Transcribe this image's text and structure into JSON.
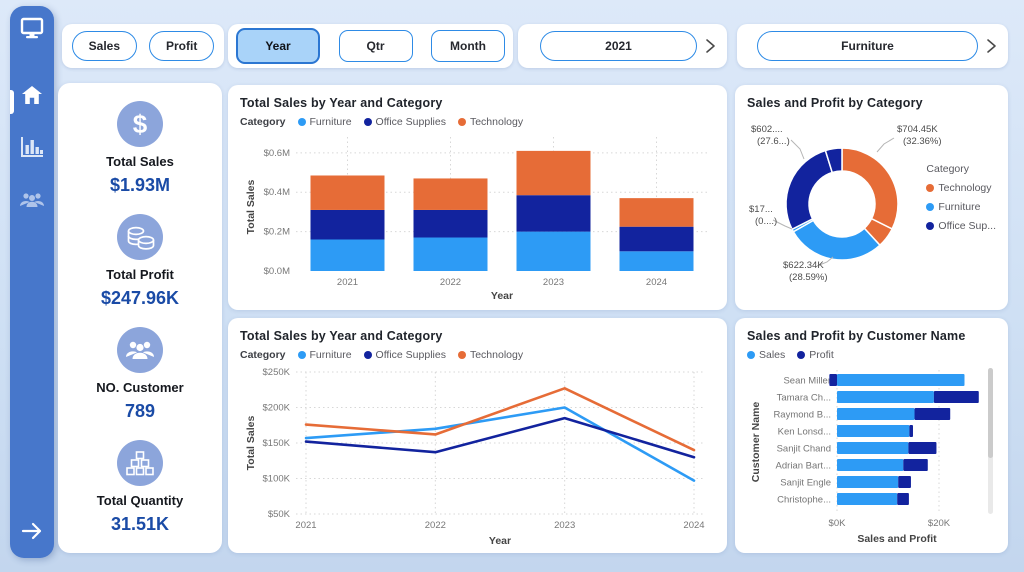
{
  "sidebar": {
    "items": [
      {
        "id": "home",
        "icon": "home-icon",
        "active": true
      },
      {
        "id": "charts",
        "icon": "bar-chart-icon",
        "active": false
      },
      {
        "id": "customers",
        "icon": "people-icon",
        "active": false
      }
    ],
    "logo_icon": "monitor-icon",
    "expand_icon": "arrow-right-icon"
  },
  "toolbar": {
    "measure_buttons": [
      {
        "label": "Sales",
        "active": false
      },
      {
        "label": "Profit",
        "active": false
      }
    ],
    "period_buttons": [
      {
        "label": "Year",
        "active": true
      },
      {
        "label": "Qtr",
        "active": false
      },
      {
        "label": "Month",
        "active": false
      }
    ],
    "year_filter": {
      "value": "2021"
    },
    "category_filter": {
      "value": "Furniture"
    }
  },
  "kpis": [
    {
      "icon": "dollar-icon",
      "label": "Total Sales",
      "value": "$1.93M"
    },
    {
      "icon": "coins-icon",
      "label": "Total Profit",
      "value": "$247.96K"
    },
    {
      "icon": "customers-icon",
      "label": "NO. Customer",
      "value": "789"
    },
    {
      "icon": "boxes-icon",
      "label": "Total Quantity",
      "value": "31.51K"
    }
  ],
  "colors": {
    "furniture_sales_blue": "#2D9BF5",
    "office_supplies_navy": "#12239E",
    "technology_orange": "#E66C37",
    "sidebar_blue": "#4777CB",
    "active_button_fill": "#A9D3F9",
    "button_border_blue": "#2E8BE6",
    "kpi_value_blue": "#1A4BA6",
    "kpi_icon_circle": "#8CA5DB"
  },
  "chart_data": [
    {
      "type": "bar",
      "stacked": true,
      "title": "Total Sales by Year and Category",
      "legend_title": "Category",
      "legend_position": "top",
      "grid": true,
      "categories": [
        "2021",
        "2022",
        "2023",
        "2024"
      ],
      "series": [
        {
          "name": "Furniture",
          "color": "#2D9BF5",
          "values_M": [
            0.16,
            0.17,
            0.2,
            0.1
          ]
        },
        {
          "name": "Office Supplies",
          "color": "#12239E",
          "values_M": [
            0.15,
            0.14,
            0.185,
            0.125
          ]
        },
        {
          "name": "Technology",
          "color": "#E66C37",
          "values_M": [
            0.175,
            0.16,
            0.225,
            0.145
          ]
        }
      ],
      "xlabel": "Year",
      "ylabel": "Total Sales",
      "yticks": [
        "$0.0M",
        "$0.2M",
        "$0.4M",
        "$0.6M"
      ],
      "ytick_values": [
        0,
        0.2,
        0.4,
        0.6
      ],
      "ylim": [
        0,
        0.65
      ]
    },
    {
      "type": "pie",
      "title": "Sales and Profit by Category",
      "legend_title": "Category",
      "legend_position": "right",
      "legend": [
        {
          "label": "Technology",
          "color": "#E66C37"
        },
        {
          "label": "Furniture",
          "color": "#2D9BF5"
        },
        {
          "label": "Office Sup...",
          "color": "#12239E"
        }
      ],
      "slices": [
        {
          "name": "Technology (Sales)",
          "pct": 32.36,
          "color": "#E66C37"
        },
        {
          "name": "Technology (Profit)",
          "pct": 5.8,
          "color": "#E66C37"
        },
        {
          "name": "Furniture (Sales)",
          "pct": 28.59,
          "color": "#2D9BF5"
        },
        {
          "name": "Furniture (Profit)",
          "pct": 0.8,
          "color": "#2D9BF5"
        },
        {
          "name": "Office Supplies (Sales)",
          "pct": 27.66,
          "color": "#12239E"
        },
        {
          "name": "Office Supplies (Profit)",
          "pct": 4.79,
          "color": "#12239E"
        }
      ],
      "callouts": [
        {
          "line1": "$704.45K",
          "line2": "(32.36%)"
        },
        {
          "line1": "$602....",
          "line2": "(27.6...)"
        },
        {
          "line1": "$17...",
          "line2": "(0....)"
        },
        {
          "line1": "$622.34K",
          "line2": "(28.59%)"
        }
      ]
    },
    {
      "type": "line",
      "title": "Total Sales by Year and Category",
      "legend_title": "Category",
      "legend_position": "top",
      "grid": true,
      "x": [
        "2021",
        "2022",
        "2023",
        "2024"
      ],
      "series": [
        {
          "name": "Furniture",
          "color": "#2D9BF5",
          "values_K": [
            157,
            170,
            200,
            97
          ]
        },
        {
          "name": "Office Supplies",
          "color": "#12239E",
          "values_K": [
            152,
            137,
            185,
            130
          ]
        },
        {
          "name": "Technology",
          "color": "#E66C37",
          "values_K": [
            176,
            162,
            227,
            140
          ]
        }
      ],
      "xlabel": "Year",
      "ylabel": "Total Sales",
      "yticks": [
        "$50K",
        "$100K",
        "$150K",
        "$200K",
        "$250K"
      ],
      "ytick_values": [
        50,
        100,
        150,
        200,
        250
      ],
      "ylim": [
        50,
        250
      ]
    },
    {
      "type": "bar",
      "horizontal": true,
      "stacked": true,
      "title": "Sales and Profit by Customer Name",
      "legend_position": "top",
      "grid": true,
      "has_scrollbar": true,
      "categories": [
        "Sean Miller",
        "Tamara Ch...",
        "Raymond B...",
        "Ken Lonsd...",
        "Sanjit Chand",
        "Adrian Bart...",
        "Sanjit Engle",
        "Christophe..."
      ],
      "series": [
        {
          "name": "Sales",
          "color": "#2D9BF5",
          "values_K": [
            25.0,
            19.0,
            15.2,
            14.2,
            14.0,
            13.0,
            12.0,
            11.8
          ]
        },
        {
          "name": "Profit",
          "color": "#12239E",
          "values_K": [
            -1.5,
            8.8,
            7.0,
            0.7,
            5.5,
            4.8,
            2.5,
            2.3
          ]
        }
      ],
      "xlabel": "Sales and Profit",
      "ylabel": "Customer Name",
      "xticks": [
        "$0K",
        "$20K"
      ],
      "xtick_values": [
        0,
        20
      ],
      "xlim": [
        -3,
        29
      ]
    }
  ]
}
